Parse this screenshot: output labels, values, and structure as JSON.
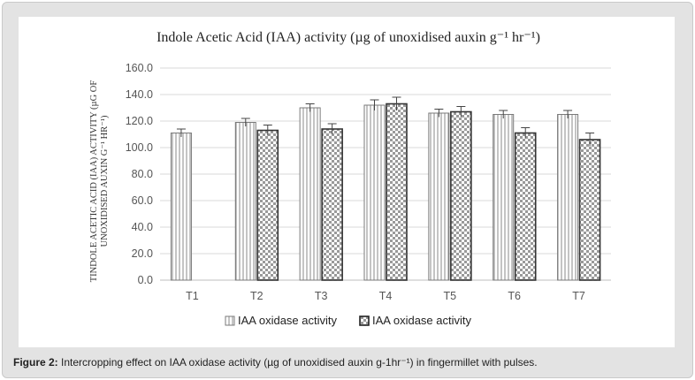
{
  "caption": {
    "label": "Figure 2:",
    "text": " Intercropping effect on IAA oxidase activity (µg of unoxidised auxin g-1hr⁻¹) in fingermillet with pulses."
  },
  "chart_data": {
    "type": "bar",
    "title": "Indole Acetic Acid (IAA)  activity  (µg of unoxidised auxin g⁻¹ hr⁻¹)",
    "ylabel_line1": "TINDOLE ACETIC ACID (IAA) ACTIVITY (µG OF",
    "ylabel_line2": "UNOXIDISED AUXIN G⁻¹ HR⁻¹)",
    "xlabel": "",
    "categories": [
      "T1",
      "T2",
      "T3",
      "T4",
      "T5",
      "T6",
      "T7"
    ],
    "ylim": [
      0,
      160
    ],
    "yticks": [
      0,
      20,
      40,
      60,
      80,
      100,
      120,
      140,
      160
    ],
    "ytick_labels": [
      "0.0",
      "20.0",
      "40.0",
      "60.0",
      "80.0",
      "100.0",
      "120.0",
      "140.0",
      "160.0"
    ],
    "grid": true,
    "legend_position": "bottom",
    "series": [
      {
        "name": "IAA oxidase activity",
        "pattern": "vertical-lines",
        "values": [
          111,
          119,
          130,
          132,
          126,
          125,
          125
        ],
        "errors": [
          3,
          3,
          3,
          4,
          3,
          3,
          3
        ]
      },
      {
        "name": "IAA oxidase activity",
        "pattern": "brick",
        "values": [
          null,
          113,
          114,
          133,
          127,
          111,
          106
        ],
        "errors": [
          null,
          4,
          4,
          5,
          4,
          4,
          5
        ]
      }
    ],
    "colors": {
      "bar_stroke": "#555555",
      "grid": "#d9d9d9",
      "axis": "#bfbfbf"
    }
  }
}
